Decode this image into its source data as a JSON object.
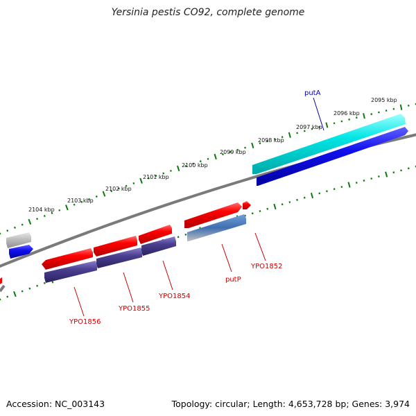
{
  "title": "Yersinia pestis CO92, complete genome",
  "footer": {
    "accession": "Accession: NC_003143",
    "stats": "Topology: circular; Length: 4,653,728 bp; Genes: 3,974"
  },
  "ruler": {
    "labels": [
      "2095 kbp",
      "2096 kbp",
      "2097 kbp",
      "2098 kbp",
      "2099 kbp",
      "2100 kbp",
      "2101 kbp",
      "2102 kbp",
      "2103 kbp",
      "2104 kbp"
    ]
  },
  "gene_labels": {
    "putA": "putA",
    "putP": "putP",
    "YPO1852": "YPO1852",
    "YPO1854": "YPO1854",
    "YPO1855": "YPO1855",
    "YPO1856": "YPO1856"
  },
  "colors": {
    "forward_gene": "#ff0000",
    "reverse_cds": "#4a3f8f",
    "highlight_cds": "#00e5e5",
    "highlight_blue": "#1010ee",
    "backbone": "#808080",
    "tick": "#0a7a0a",
    "label_red": "#cc0000",
    "label_blue": "#0000aa"
  }
}
